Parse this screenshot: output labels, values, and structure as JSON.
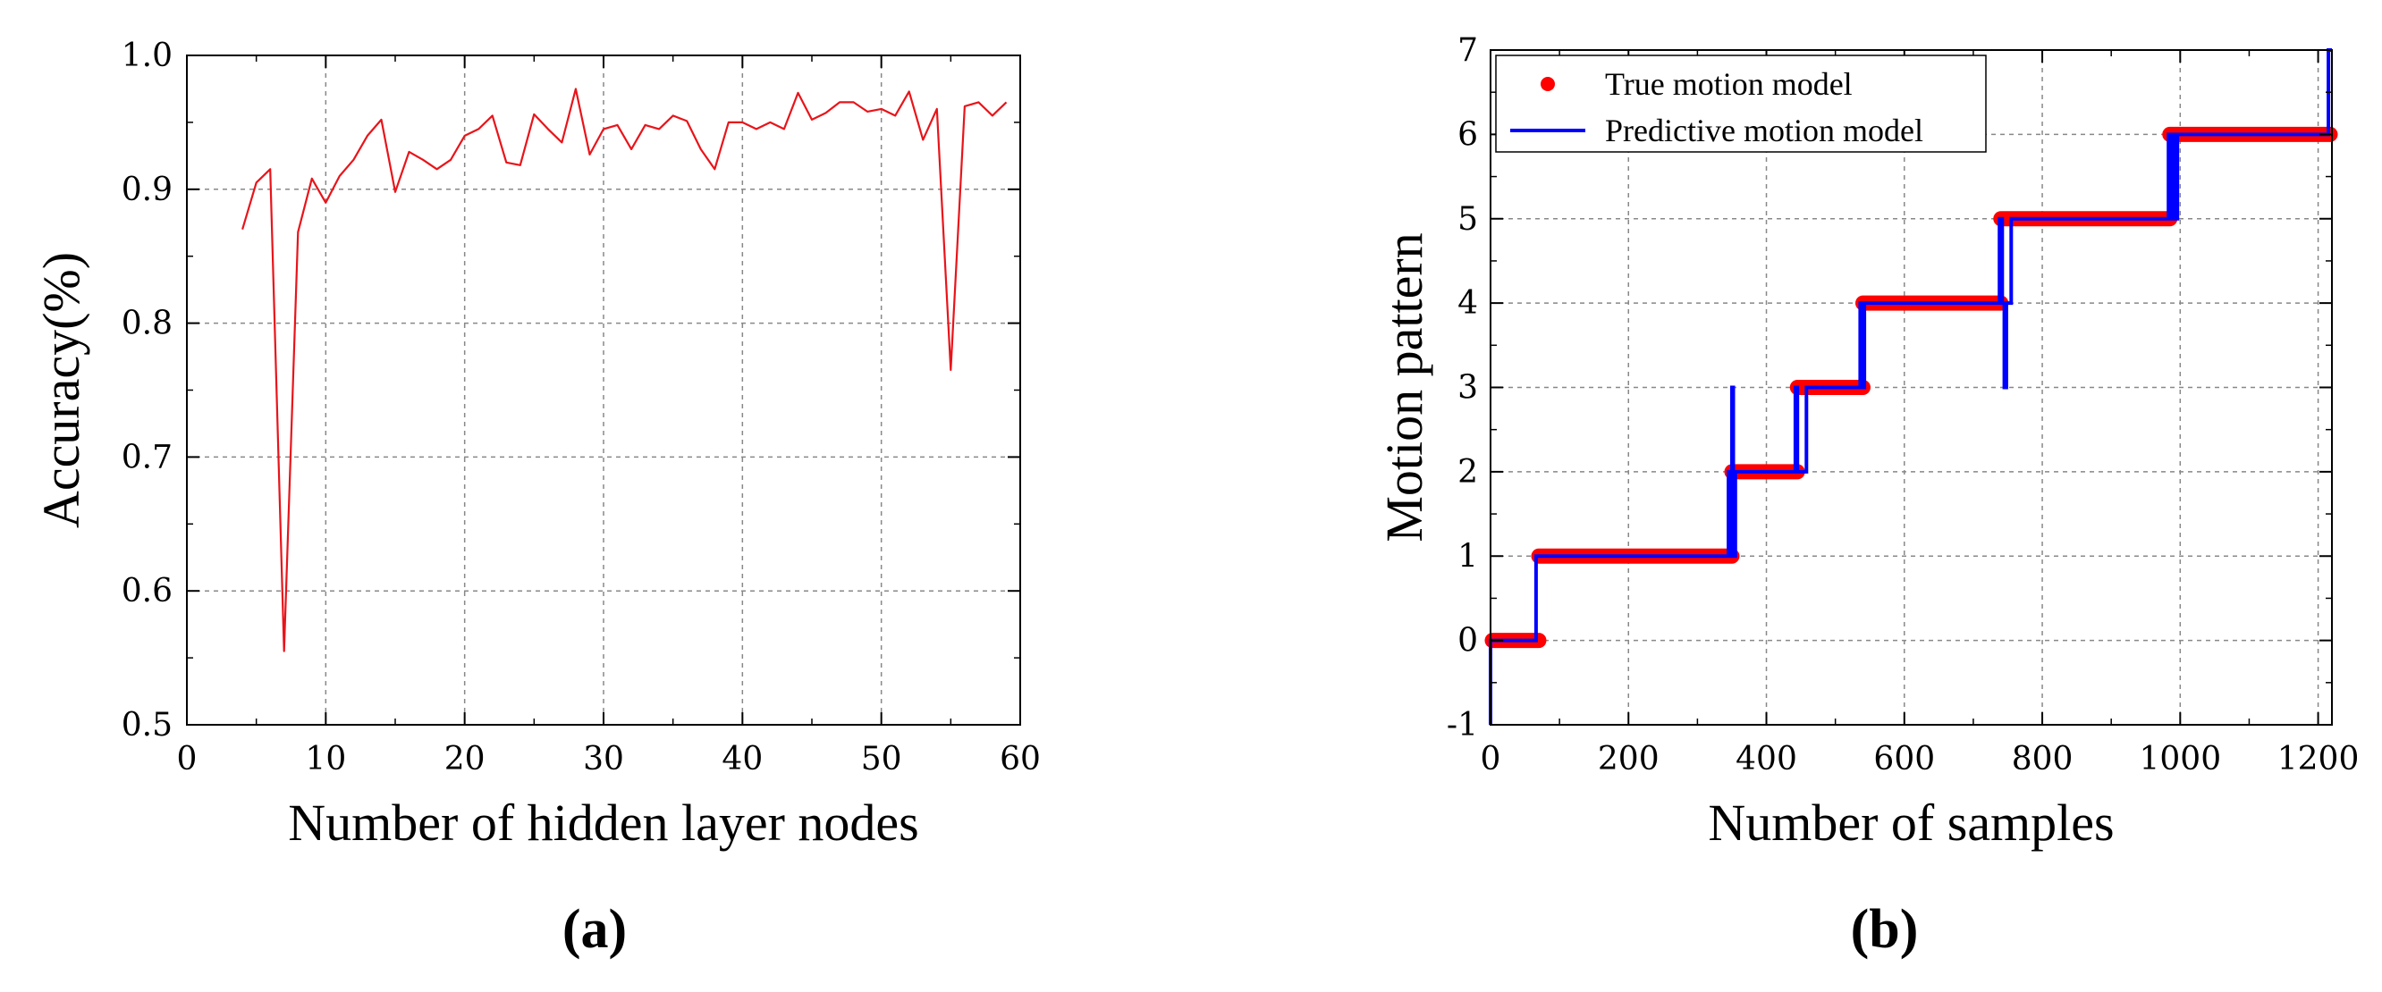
{
  "chart_data": [
    {
      "type": "line",
      "panel_label": "(a)",
      "xlabel": "Number of hidden layer nodes",
      "ylabel": "Accuracy(%)",
      "xlim": [
        0,
        60
      ],
      "ylim": [
        0.5,
        1.0
      ],
      "xticks": [
        "0",
        "10",
        "20",
        "30",
        "40",
        "50",
        "60"
      ],
      "yticks": [
        "0.5",
        "0.6",
        "0.7",
        "0.8",
        "0.9",
        "1.0"
      ],
      "grid": true,
      "color": "#e8141a",
      "series": [
        {
          "name": "Accuracy",
          "x": [
            4,
            5,
            6,
            7,
            8,
            9,
            10,
            11,
            12,
            13,
            14,
            15,
            16,
            17,
            18,
            19,
            20,
            21,
            22,
            23,
            24,
            25,
            26,
            27,
            28,
            29,
            30,
            31,
            32,
            33,
            34,
            35,
            36,
            37,
            38,
            39,
            40,
            41,
            42,
            43,
            44,
            45,
            46,
            47,
            48,
            49,
            50,
            51,
            52,
            53,
            54,
            55,
            56,
            57,
            58,
            59
          ],
          "values": [
            0.87,
            0.905,
            0.915,
            0.555,
            0.868,
            0.908,
            0.89,
            0.91,
            0.922,
            0.94,
            0.952,
            0.898,
            0.928,
            0.922,
            0.915,
            0.922,
            0.94,
            0.945,
            0.955,
            0.92,
            0.918,
            0.956,
            0.945,
            0.935,
            0.975,
            0.926,
            0.945,
            0.948,
            0.93,
            0.948,
            0.945,
            0.955,
            0.951,
            0.93,
            0.915,
            0.95,
            0.95,
            0.945,
            0.95,
            0.945,
            0.972,
            0.952,
            0.957,
            0.965,
            0.965,
            0.958,
            0.96,
            0.955,
            0.973,
            0.937,
            0.96,
            0.765,
            0.962,
            0.965,
            0.955,
            0.965
          ]
        }
      ]
    },
    {
      "type": "line",
      "panel_label": "(b)",
      "xlabel": "Number of samples",
      "ylabel": "Motion pattern",
      "xlim": [
        0,
        1220
      ],
      "ylim": [
        -1,
        7
      ],
      "xticks": [
        "0",
        "200",
        "400",
        "600",
        "800",
        "1000",
        "1200"
      ],
      "yticks": [
        "-1",
        "0",
        "1",
        "2",
        "3",
        "4",
        "5",
        "6",
        "7"
      ],
      "grid": true,
      "legend": {
        "position": "top-left",
        "entries": [
          "True motion model",
          "Predictive motion model"
        ]
      },
      "series": [
        {
          "name": "True motion model",
          "style": "markers",
          "color": "#ff0000",
          "segments": [
            {
              "x_start": 0,
              "x_end": 70,
              "y": 0
            },
            {
              "x_start": 70,
              "x_end": 350,
              "y": 1
            },
            {
              "x_start": 350,
              "x_end": 445,
              "y": 2
            },
            {
              "x_start": 445,
              "x_end": 540,
              "y": 3
            },
            {
              "x_start": 540,
              "x_end": 740,
              "y": 4
            },
            {
              "x_start": 740,
              "x_end": 985,
              "y": 5
            },
            {
              "x_start": 985,
              "x_end": 1220,
              "y": 6
            }
          ]
        },
        {
          "name": "Predictive motion model",
          "style": "line",
          "color": "#0000ff",
          "x": [
            0,
            0,
            4,
            66,
            66,
            72,
            72,
            345,
            345,
            348,
            348,
            350,
            350,
            352,
            352,
            354,
            354,
            355,
            355,
            442,
            442,
            445,
            445,
            458,
            458,
            462,
            462,
            536,
            536,
            538,
            538,
            542,
            542,
            544,
            544,
            738,
            738,
            742,
            742,
            745,
            745,
            748,
            748,
            755,
            755,
            758,
            758,
            983,
            983,
            986,
            986,
            990,
            990,
            992,
            992,
            996,
            996,
            1000,
            1000,
            1215,
            1215,
            1220
          ],
          "values": [
            -1,
            0,
            0,
            0,
            1,
            1,
            1,
            1,
            2,
            2,
            1,
            1,
            3,
            3,
            2,
            2,
            1,
            1,
            2,
            2,
            3,
            3,
            2,
            2,
            3,
            3,
            3,
            3,
            4,
            4,
            3,
            3,
            4,
            4,
            4,
            4,
            5,
            5,
            4,
            4,
            3,
            3,
            4,
            4,
            5,
            5,
            5,
            5,
            6,
            6,
            5,
            5,
            6,
            6,
            5,
            5,
            6,
            6,
            6,
            6,
            7,
            7
          ]
        }
      ]
    }
  ]
}
